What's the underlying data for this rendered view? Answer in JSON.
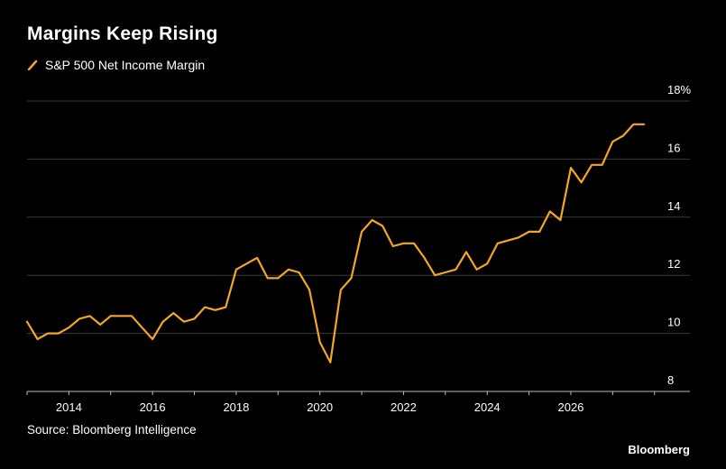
{
  "header": {
    "title": "Margins Keep Rising"
  },
  "footer": {
    "source": "Source: Bloomberg Intelligence",
    "brand": "Bloomberg"
  },
  "colors": {
    "background": "#000000",
    "line": "#f5a623",
    "grid": "#3a3a3a",
    "text": "#ffffff"
  },
  "chart_data": {
    "type": "line",
    "title": "Margins Keep Rising",
    "xlabel": "",
    "ylabel": "",
    "y_unit": "%",
    "xlim": [
      2013.0,
      2028.2
    ],
    "ylim": [
      8,
      18
    ],
    "x_ticks": [
      2014,
      2016,
      2018,
      2020,
      2022,
      2024,
      2026
    ],
    "y_ticks": [
      8,
      10,
      12,
      14,
      16,
      18
    ],
    "grid": "horizontal",
    "legend_position": "top-left",
    "series": [
      {
        "name": "S&P 500 Net Income Margin",
        "x": [
          2013.0,
          2013.25,
          2013.5,
          2013.75,
          2014.0,
          2014.25,
          2014.5,
          2014.75,
          2015.0,
          2015.25,
          2015.5,
          2015.75,
          2016.0,
          2016.25,
          2016.5,
          2016.75,
          2017.0,
          2017.25,
          2017.5,
          2017.75,
          2018.0,
          2018.25,
          2018.5,
          2018.75,
          2019.0,
          2019.25,
          2019.5,
          2019.75,
          2020.0,
          2020.25,
          2020.5,
          2020.75,
          2021.0,
          2021.25,
          2021.5,
          2021.75,
          2022.0,
          2022.25,
          2022.5,
          2022.75,
          2023.0,
          2023.25,
          2023.5,
          2023.75,
          2024.0,
          2024.25,
          2024.5,
          2024.75,
          2025.0,
          2025.25,
          2025.5,
          2025.75,
          2026.0,
          2026.25,
          2026.5,
          2026.75,
          2027.0,
          2027.25,
          2027.5,
          2027.75
        ],
        "values": [
          10.4,
          9.8,
          10.0,
          10.0,
          10.2,
          10.5,
          10.6,
          10.3,
          10.6,
          10.6,
          10.6,
          10.2,
          9.8,
          10.4,
          10.7,
          10.4,
          10.5,
          10.9,
          10.8,
          10.9,
          12.2,
          12.4,
          12.6,
          11.9,
          11.9,
          12.2,
          12.1,
          11.5,
          9.7,
          9.0,
          11.5,
          11.9,
          13.5,
          13.9,
          13.7,
          13.0,
          13.1,
          13.1,
          12.6,
          12.0,
          12.1,
          12.2,
          12.8,
          12.2,
          12.4,
          13.1,
          13.2,
          13.3,
          13.5,
          13.5,
          14.2,
          13.9,
          15.7,
          15.2,
          15.8,
          15.8,
          16.6,
          16.8,
          17.2,
          17.2
        ]
      }
    ]
  }
}
